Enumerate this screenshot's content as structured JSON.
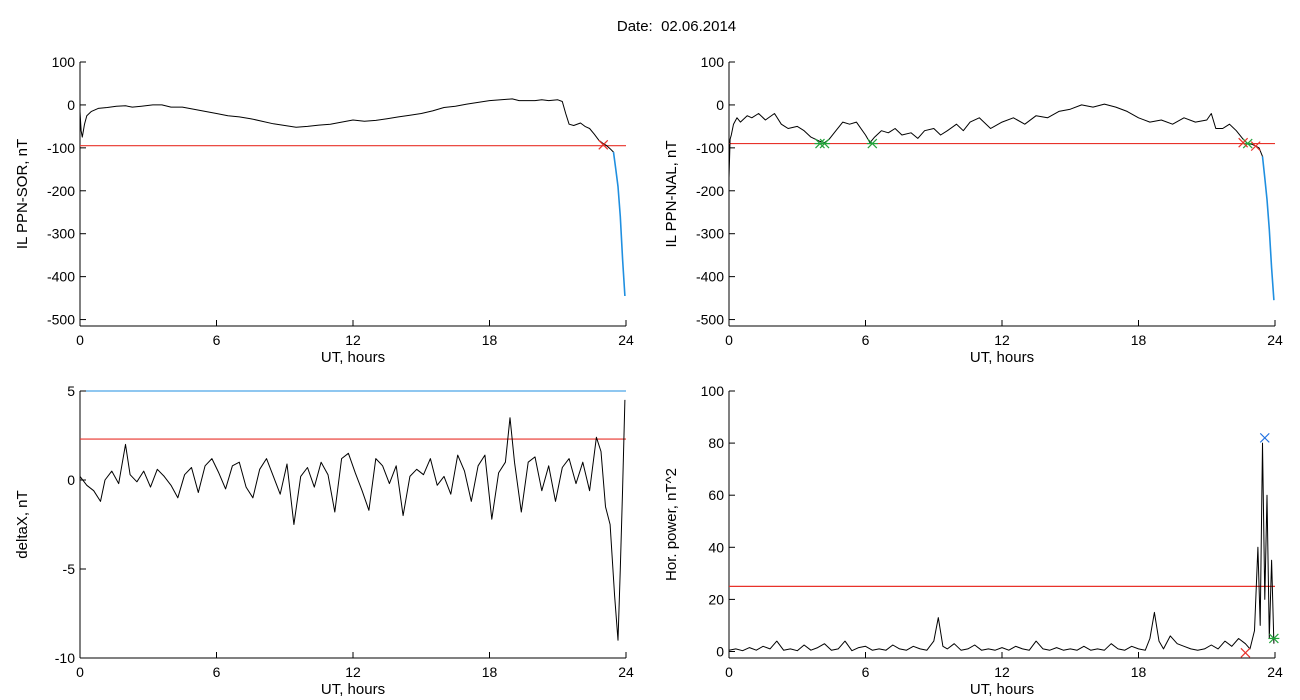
{
  "header": {
    "date_label": "Date:",
    "date_value": "02.06.2014"
  },
  "colors": {
    "threshold": "#e8322a",
    "trace": "#000000",
    "highlight": "#1f8fe0",
    "marker_x": "#e8322a",
    "marker_star": "#21a33a",
    "marker_top": "#1f6fe0"
  },
  "chart_data": [
    {
      "id": "sor",
      "type": "line",
      "title": "",
      "xlabel": "UT, hours",
      "ylabel": "IL PPN-SOR, nT",
      "xlim": [
        0,
        24
      ],
      "ylim": [
        -515,
        100
      ],
      "xticks": [
        0,
        6,
        12,
        18,
        24
      ],
      "yticks": [
        100,
        0,
        -100,
        -200,
        -300,
        -400,
        -500
      ],
      "threshold": -95,
      "series": [
        {
          "role": "trace",
          "x": [
            0,
            0.05,
            0.1,
            0.2,
            0.3,
            0.5,
            0.8,
            1.2,
            1.6,
            2.0,
            2.3,
            2.7,
            3.2,
            3.6,
            4.0,
            4.5,
            5.0,
            5.5,
            6.0,
            6.5,
            7.0,
            7.5,
            8.0,
            8.5,
            9.0,
            9.5,
            10.0,
            10.5,
            11.0,
            11.5,
            12.0,
            12.5,
            13.0,
            13.5,
            14.0,
            14.5,
            15.0,
            15.5,
            16.0,
            16.5,
            17.0,
            17.5,
            18.0,
            18.5,
            19.0,
            19.3,
            19.6,
            20.0,
            20.3,
            20.6,
            21.0,
            21.2,
            21.35,
            21.5,
            21.7,
            22.0,
            22.2,
            22.4,
            22.6,
            22.8,
            23.0,
            23.15,
            23.3,
            23.45
          ],
          "y": [
            -15,
            -60,
            -75,
            -45,
            -25,
            -15,
            -8,
            -6,
            -3,
            -2,
            -5,
            -3,
            0,
            0,
            -5,
            -5,
            -10,
            -15,
            -20,
            -25,
            -28,
            -32,
            -38,
            -44,
            -48,
            -52,
            -50,
            -47,
            -45,
            -40,
            -35,
            -38,
            -36,
            -32,
            -28,
            -24,
            -20,
            -14,
            -6,
            -3,
            2,
            6,
            10,
            12,
            14,
            10,
            10,
            10,
            12,
            10,
            12,
            8,
            -20,
            -45,
            -48,
            -42,
            -50,
            -55,
            -68,
            -82,
            -90,
            -95,
            -102,
            -110
          ]
        },
        {
          "role": "highlight",
          "x": [
            23.45,
            23.55,
            23.65,
            23.75,
            23.85,
            23.95
          ],
          "y": [
            -110,
            -150,
            -190,
            -260,
            -360,
            -445
          ]
        }
      ],
      "markers": [
        {
          "type": "x",
          "x": 23.0,
          "y": -93,
          "color": "#e8322a"
        }
      ]
    },
    {
      "id": "nal",
      "type": "line",
      "title": "",
      "xlabel": "UT, hours",
      "ylabel": "IL PPN-NAL, nT",
      "xlim": [
        0,
        24
      ],
      "ylim": [
        -515,
        100
      ],
      "xticks": [
        0,
        6,
        12,
        18,
        24
      ],
      "yticks": [
        100,
        0,
        -100,
        -200,
        -300,
        -400,
        -500
      ],
      "threshold": -90,
      "series": [
        {
          "role": "trace",
          "x": [
            0,
            0.05,
            0.1,
            0.2,
            0.35,
            0.5,
            0.8,
            1.0,
            1.3,
            1.6,
            2.0,
            2.3,
            2.6,
            3.0,
            3.3,
            3.6,
            4.0,
            4.2,
            4.4,
            4.7,
            5.0,
            5.3,
            5.6,
            6.0,
            6.2,
            6.4,
            6.7,
            7.0,
            7.3,
            7.6,
            8.0,
            8.3,
            8.6,
            9.0,
            9.3,
            9.6,
            10.0,
            10.3,
            10.6,
            11.0,
            11.5,
            12.0,
            12.5,
            13.0,
            13.5,
            14.0,
            14.5,
            15.0,
            15.5,
            16.0,
            16.5,
            17.0,
            17.5,
            18.0,
            18.5,
            19.0,
            19.5,
            20.0,
            20.5,
            21.0,
            21.2,
            21.4,
            21.7,
            22.0,
            22.3,
            22.6,
            22.8,
            23.0,
            23.15,
            23.3,
            23.45
          ],
          "y": [
            -170,
            -80,
            -70,
            -45,
            -30,
            -40,
            -25,
            -30,
            -20,
            -35,
            -20,
            -45,
            -55,
            -50,
            -60,
            -75,
            -85,
            -88,
            -80,
            -60,
            -40,
            -45,
            -40,
            -70,
            -88,
            -75,
            -60,
            -65,
            -55,
            -70,
            -65,
            -78,
            -60,
            -55,
            -70,
            -60,
            -45,
            -60,
            -40,
            -30,
            -55,
            -40,
            -30,
            -45,
            -25,
            -30,
            -15,
            -10,
            0,
            -5,
            2,
            -5,
            -15,
            -30,
            -40,
            -35,
            -45,
            -30,
            -40,
            -35,
            -20,
            -55,
            -55,
            -45,
            -60,
            -80,
            -90,
            -92,
            -96,
            -100,
            -120
          ]
        },
        {
          "role": "highlight",
          "x": [
            23.45,
            23.55,
            23.65,
            23.75,
            23.85,
            23.95
          ],
          "y": [
            -120,
            -170,
            -220,
            -290,
            -380,
            -455
          ]
        }
      ],
      "markers": [
        {
          "type": "star",
          "x": 4.0,
          "y": -90,
          "color": "#21a33a"
        },
        {
          "type": "star",
          "x": 4.2,
          "y": -90,
          "color": "#21a33a"
        },
        {
          "type": "star",
          "x": 6.3,
          "y": -90,
          "color": "#21a33a"
        },
        {
          "type": "star",
          "x": 22.8,
          "y": -90,
          "color": "#21a33a"
        },
        {
          "type": "x",
          "x": 22.6,
          "y": -88,
          "color": "#e8322a"
        },
        {
          "type": "x",
          "x": 23.15,
          "y": -96,
          "color": "#e8322a"
        }
      ]
    },
    {
      "id": "deltax",
      "type": "line",
      "title": "",
      "xlabel": "UT, hours",
      "ylabel": "deltaX, nT",
      "xlim": [
        0,
        24
      ],
      "ylim": [
        -10,
        5
      ],
      "xticks": [
        0,
        6,
        12,
        18,
        24
      ],
      "yticks": [
        5,
        0,
        -5,
        -10
      ],
      "threshold": 2.3,
      "top_line": 5,
      "series": [
        {
          "role": "trace",
          "x": [
            0,
            0.3,
            0.6,
            0.9,
            1.1,
            1.4,
            1.7,
            2.0,
            2.2,
            2.5,
            2.8,
            3.1,
            3.4,
            3.7,
            4.0,
            4.3,
            4.6,
            4.9,
            5.2,
            5.5,
            5.8,
            6.1,
            6.4,
            6.7,
            7.0,
            7.3,
            7.6,
            7.9,
            8.2,
            8.5,
            8.8,
            9.1,
            9.4,
            9.7,
            10.0,
            10.3,
            10.6,
            10.9,
            11.2,
            11.5,
            11.8,
            12.1,
            12.4,
            12.7,
            13.0,
            13.3,
            13.6,
            13.9,
            14.2,
            14.5,
            14.8,
            15.1,
            15.4,
            15.7,
            16.0,
            16.3,
            16.6,
            16.9,
            17.2,
            17.5,
            17.8,
            18.1,
            18.4,
            18.7,
            18.9,
            19.1,
            19.4,
            19.7,
            20.0,
            20.3,
            20.6,
            20.9,
            21.2,
            21.5,
            21.8,
            22.1,
            22.4,
            22.7,
            22.9,
            23.1,
            23.3,
            23.5,
            23.65,
            23.75,
            23.85,
            23.95
          ],
          "y": [
            0.2,
            -0.3,
            -0.6,
            -1.2,
            0.0,
            0.5,
            -0.2,
            2.0,
            0.3,
            -0.1,
            0.5,
            -0.4,
            0.6,
            0.2,
            -0.3,
            -1.0,
            0.3,
            0.7,
            -0.7,
            0.8,
            1.2,
            0.4,
            -0.5,
            0.8,
            1.0,
            -0.4,
            -1.0,
            0.6,
            1.2,
            0.2,
            -0.8,
            0.9,
            -2.5,
            0.2,
            0.7,
            -0.4,
            1.0,
            0.3,
            -1.8,
            1.2,
            1.5,
            0.4,
            -0.6,
            -1.7,
            1.2,
            0.8,
            -0.2,
            0.8,
            -2.0,
            0.2,
            0.6,
            0.3,
            1.2,
            -0.3,
            0.2,
            -0.8,
            1.4,
            0.5,
            -1.2,
            0.8,
            1.4,
            -2.2,
            0.4,
            1.0,
            3.5,
            1.0,
            -1.8,
            1.0,
            1.3,
            -0.6,
            0.8,
            -1.2,
            0.7,
            1.2,
            -0.2,
            1.0,
            -0.6,
            2.4,
            1.6,
            -1.5,
            -2.5,
            -6.5,
            -9.0,
            -5.0,
            -0.5,
            4.5
          ]
        }
      ],
      "markers": []
    },
    {
      "id": "power",
      "type": "line",
      "title": "",
      "xlabel": "UT, hours",
      "ylabel": "Hor. power, nT^2",
      "xlim": [
        0,
        24
      ],
      "ylim": [
        -2.5,
        100
      ],
      "xticks": [
        0,
        6,
        12,
        18,
        24
      ],
      "yticks": [
        100,
        80,
        60,
        40,
        20,
        0
      ],
      "threshold": 25,
      "series": [
        {
          "role": "trace",
          "x": [
            0,
            0.3,
            0.6,
            0.9,
            1.2,
            1.5,
            1.8,
            2.1,
            2.4,
            2.7,
            3.0,
            3.3,
            3.6,
            3.9,
            4.2,
            4.5,
            4.8,
            5.1,
            5.4,
            5.7,
            6.0,
            6.3,
            6.6,
            6.9,
            7.2,
            7.5,
            7.8,
            8.1,
            8.4,
            8.7,
            9.0,
            9.2,
            9.4,
            9.6,
            9.9,
            10.2,
            10.5,
            10.8,
            11.1,
            11.4,
            11.7,
            12.0,
            12.3,
            12.6,
            12.9,
            13.2,
            13.5,
            13.8,
            14.1,
            14.4,
            14.7,
            15.0,
            15.3,
            15.6,
            15.9,
            16.2,
            16.5,
            16.8,
            17.1,
            17.4,
            17.7,
            18.0,
            18.3,
            18.5,
            18.7,
            18.9,
            19.1,
            19.4,
            19.7,
            20.0,
            20.3,
            20.6,
            20.9,
            21.2,
            21.5,
            21.8,
            22.1,
            22.4,
            22.7,
            22.9,
            23.1,
            23.25,
            23.35,
            23.45,
            23.55,
            23.65,
            23.75,
            23.85,
            23.95
          ],
          "y": [
            0.5,
            1.0,
            0.3,
            1.5,
            0.5,
            2.0,
            1.0,
            4.0,
            0.5,
            1.0,
            0.3,
            2.5,
            0.5,
            1.5,
            3.0,
            0.5,
            1.0,
            4.0,
            0.3,
            1.5,
            2.0,
            0.5,
            1.0,
            0.5,
            2.5,
            1.0,
            0.5,
            2.0,
            1.0,
            0.5,
            4.0,
            13.0,
            2.0,
            1.0,
            3.0,
            0.5,
            1.0,
            2.5,
            0.5,
            1.0,
            0.5,
            1.5,
            0.5,
            2.0,
            1.0,
            0.5,
            4.0,
            1.0,
            0.5,
            1.5,
            0.5,
            1.0,
            0.5,
            2.0,
            0.5,
            1.0,
            0.5,
            3.0,
            1.0,
            0.5,
            2.0,
            1.0,
            0.5,
            5.0,
            15.0,
            4.0,
            1.0,
            6.0,
            3.0,
            2.0,
            1.0,
            0.5,
            1.0,
            2.5,
            1.0,
            4.0,
            2.0,
            5.0,
            3.0,
            1.0,
            8.0,
            40.0,
            10.0,
            80.0,
            20.0,
            60.0,
            5.0,
            35.0,
            3.0
          ]
        }
      ],
      "markers": [
        {
          "type": "x",
          "x": 23.55,
          "y": 82,
          "color": "#1f6fe0"
        },
        {
          "type": "x",
          "x": 22.7,
          "y": -0.5,
          "color": "#e8322a"
        },
        {
          "type": "star",
          "x": 23.95,
          "y": 5,
          "color": "#21a33a"
        }
      ]
    }
  ]
}
